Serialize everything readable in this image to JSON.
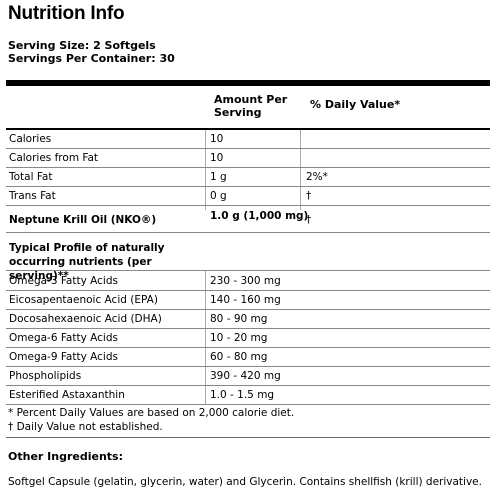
{
  "title": "Nutrition Info",
  "serving_size": "Serving Size: 2 Softgels",
  "servings_per_container": "Servings Per Container: 30",
  "headers": {
    "amount": "Amount Per Serving",
    "dv": "% Daily Value*"
  },
  "rows_basic": [
    {
      "name": "Calories",
      "amount": "10",
      "dv": ""
    },
    {
      "name": "Calories from Fat",
      "amount": "10",
      "dv": ""
    },
    {
      "name": "Total Fat",
      "amount": "1 g",
      "dv": "2%*"
    },
    {
      "name": "Trans Fat",
      "amount": "0 g",
      "dv": "†"
    }
  ],
  "krill": {
    "name": "Neptune Krill Oil (NKO®)",
    "amount": "1.0 g (1,000 mg)",
    "dv": "†"
  },
  "profile_heading": "Typical Profile of naturally occurring nutrients (per serving)**",
  "profile_rows": [
    {
      "name": "Omega-3 Fatty Acids",
      "amount": "230 - 300 mg"
    },
    {
      "name": "Eicosapentaenoic Acid (EPA)",
      "amount": "140 - 160 mg"
    },
    {
      "name": "Docosahexaenoic Acid (DHA)",
      "amount": "80 - 90 mg"
    },
    {
      "name": "Omega-6 Fatty Acids",
      "amount": "10 - 20 mg"
    },
    {
      "name": "Omega-9 Fatty Acids",
      "amount": "60 - 80 mg"
    },
    {
      "name": "Phospholipids",
      "amount": "390 - 420 mg"
    },
    {
      "name": "Esterified Astaxanthin",
      "amount": "1.0 - 1.5 mg"
    }
  ],
  "footnotes": [
    "* Percent Daily Values are based on 2,000 calorie diet.",
    "† Daily Value not established."
  ],
  "other_ingredients": {
    "heading": "Other Ingredients:",
    "text": "Softgel Capsule (gelatin, glycerin, water) and Glycerin.  Contains shellfish (krill) derivative."
  }
}
